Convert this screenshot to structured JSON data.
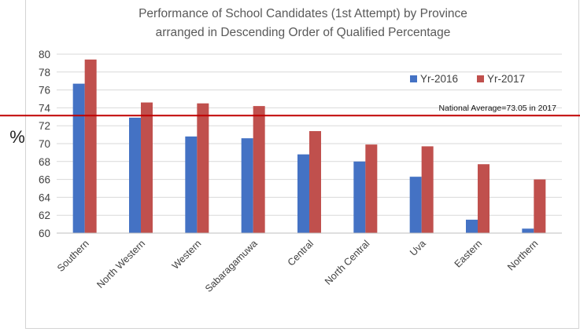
{
  "chart_data": {
    "type": "bar",
    "title": [
      "Performance of School Candidates (1st Attempt) by Province",
      "arranged in Descending Order of Qualified Percentage"
    ],
    "ylabel": "%",
    "categories": [
      "Southern",
      "North Western",
      "Western",
      "Sabaragamuwa",
      "Central",
      "North Central",
      "Uva",
      "Eastern",
      "Northern"
    ],
    "series": [
      {
        "name": "Yr-2016",
        "color": "#4472c4",
        "values": [
          76.7,
          72.9,
          70.8,
          70.6,
          68.8,
          68.0,
          66.3,
          61.5,
          60.5
        ]
      },
      {
        "name": "Yr-2017",
        "color": "#c0504d",
        "values": [
          79.4,
          74.6,
          74.5,
          74.2,
          71.4,
          69.9,
          69.7,
          67.7,
          66.0
        ]
      }
    ],
    "ylim": [
      60,
      80
    ],
    "yticks": [
      60,
      62,
      64,
      66,
      68,
      70,
      72,
      74,
      76,
      78,
      80
    ],
    "grid": true,
    "legend_position": "top-right",
    "reference_line": {
      "value": 73.05,
      "label": "National Average=73.05 in 2017",
      "color": "#c00000"
    }
  }
}
